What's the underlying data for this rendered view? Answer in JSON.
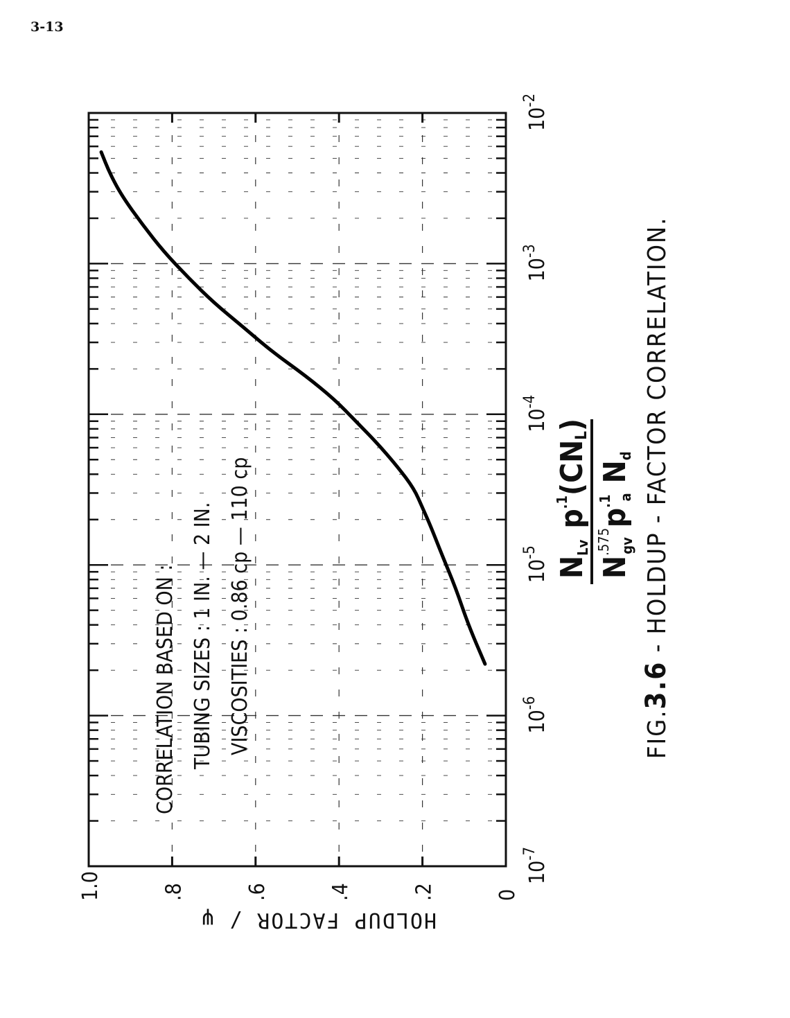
{
  "page_number": "3-13",
  "chart_data": {
    "type": "line",
    "caption_prefix": "FIG.",
    "caption_number": "3.6",
    "caption_text": " - HOLDUP - FACTOR CORRELATION.",
    "ylabel": "HOLDUP FACTOR / ψ",
    "x_scale": "log",
    "xlim": [
      1e-07,
      0.01
    ],
    "ylim": [
      0,
      1.0
    ],
    "x_tick_labels": [
      {
        "x": 1e-07,
        "base": "10",
        "exp": "-7"
      },
      {
        "x": 1e-06,
        "base": "10",
        "exp": "-6"
      },
      {
        "x": 1e-05,
        "base": "10",
        "exp": "-5"
      },
      {
        "x": 0.0001,
        "base": "10",
        "exp": "-4"
      },
      {
        "x": 0.001,
        "base": "10",
        "exp": "-3"
      },
      {
        "x": 0.01,
        "base": "10",
        "exp": "-2"
      }
    ],
    "y_tick_labels": [
      {
        "y": 0,
        "label": "0"
      },
      {
        "y": 0.2,
        "label": ".2"
      },
      {
        "y": 0.4,
        "label": ".4"
      },
      {
        "y": 0.6,
        "label": ".6"
      },
      {
        "y": 0.8,
        "label": ".8"
      },
      {
        "y": 1.0,
        "label": "1.0"
      }
    ],
    "xlabel": {
      "num_1": "N",
      "num_1_sub": "Lv",
      "num_2": "p",
      "num_2_sup": ".1",
      "num_3": "(CN",
      "num_3_sub": "L",
      "num_3_end": ")",
      "den_1": "N",
      "den_1_sup": ".575",
      "den_1_sub": "gv",
      "den_2": "p",
      "den_2_sup": ".1",
      "den_2_sub": "a",
      "den_3": "N",
      "den_3_sub": "d"
    },
    "annotation": [
      "CORRELATION BASED ON :",
      "TUBING SIZES : 1 IN. — 2 IN.",
      "VISCOSITIES : 0.86 cp — 110 cp"
    ],
    "grid": true,
    "series": [
      {
        "points": [
          {
            "x": 2.2e-06,
            "y": 0.05
          },
          {
            "x": 4e-06,
            "y": 0.09
          },
          {
            "x": 7e-06,
            "y": 0.12
          },
          {
            "x": 1.2e-05,
            "y": 0.155
          },
          {
            "x": 1.8e-05,
            "y": 0.18
          },
          {
            "x": 2.4e-05,
            "y": 0.2
          },
          {
            "x": 3.2e-05,
            "y": 0.22
          },
          {
            "x": 4.5e-05,
            "y": 0.26
          },
          {
            "x": 6.5e-05,
            "y": 0.31
          },
          {
            "x": 9e-05,
            "y": 0.36
          },
          {
            "x": 0.000125,
            "y": 0.41
          },
          {
            "x": 0.00018,
            "y": 0.48
          },
          {
            "x": 0.00026,
            "y": 0.56
          },
          {
            "x": 0.00038,
            "y": 0.63
          },
          {
            "x": 0.00055,
            "y": 0.7
          },
          {
            "x": 0.0008,
            "y": 0.76
          },
          {
            "x": 0.0012,
            "y": 0.82
          },
          {
            "x": 0.0018,
            "y": 0.87
          },
          {
            "x": 0.0028,
            "y": 0.92
          },
          {
            "x": 0.004,
            "y": 0.95
          },
          {
            "x": 0.0055,
            "y": 0.97
          }
        ]
      }
    ]
  }
}
